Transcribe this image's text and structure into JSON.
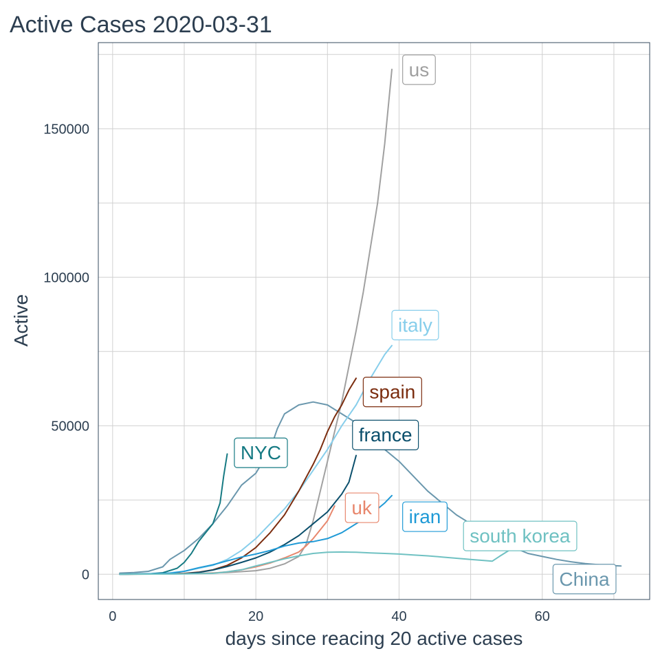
{
  "colors": {
    "text": "#2c3e50",
    "grid": "#d0d0d0",
    "frame": "#34495e"
  },
  "chart_data": {
    "type": "line",
    "title": "Active Cases 2020-03-31",
    "xlabel": "days since reacing 20 active cases",
    "ylabel": "Active",
    "xlim": [
      -2,
      75
    ],
    "ylim": [
      -8500,
      179000
    ],
    "x_ticks": [
      0,
      20,
      40,
      60
    ],
    "x_tick_labels": [
      "0",
      "20",
      "40",
      "60"
    ],
    "y_ticks": [
      0,
      50000,
      100000,
      150000
    ],
    "y_tick_labels": [
      "0",
      "50000",
      "100000",
      "150000"
    ],
    "grid": true,
    "legend": "direct labels at line ends",
    "series": [
      {
        "name": "China",
        "color": "#6a97ad",
        "points": [
          [
            1,
            400
          ],
          [
            3,
            600
          ],
          [
            5,
            1000
          ],
          [
            7,
            2500
          ],
          [
            8,
            5000
          ],
          [
            10,
            8000
          ],
          [
            12,
            12000
          ],
          [
            14,
            17000
          ],
          [
            16,
            23000
          ],
          [
            18,
            30000
          ],
          [
            20,
            34000
          ],
          [
            22,
            42000
          ],
          [
            23,
            49000
          ],
          [
            24,
            54000
          ],
          [
            26,
            57000
          ],
          [
            28,
            58000
          ],
          [
            30,
            57000
          ],
          [
            32,
            54000
          ],
          [
            34,
            51000
          ],
          [
            36,
            46000
          ],
          [
            38,
            42000
          ],
          [
            40,
            38000
          ],
          [
            42,
            33000
          ],
          [
            44,
            28000
          ],
          [
            46,
            24000
          ],
          [
            48,
            20000
          ],
          [
            50,
            17000
          ],
          [
            52,
            14000
          ],
          [
            54,
            11000
          ],
          [
            56,
            9000
          ],
          [
            58,
            7000
          ],
          [
            60,
            6000
          ],
          [
            62,
            5000
          ],
          [
            64,
            4200
          ],
          [
            66,
            3600
          ],
          [
            68,
            3200
          ],
          [
            70,
            2900
          ],
          [
            71,
            2800
          ]
        ],
        "label": "China"
      },
      {
        "name": "us",
        "color": "#a0a0a0",
        "points": [
          [
            1,
            20
          ],
          [
            8,
            80
          ],
          [
            12,
            300
          ],
          [
            16,
            600
          ],
          [
            20,
            1200
          ],
          [
            22,
            2000
          ],
          [
            24,
            3500
          ],
          [
            26,
            6000
          ],
          [
            27,
            10000
          ],
          [
            28,
            18000
          ],
          [
            29,
            28000
          ],
          [
            30,
            38000
          ],
          [
            31,
            48000
          ],
          [
            32,
            58000
          ],
          [
            33,
            70000
          ],
          [
            34,
            82000
          ],
          [
            35,
            95000
          ],
          [
            36,
            110000
          ],
          [
            37,
            125000
          ],
          [
            38,
            145000
          ],
          [
            39,
            170000
          ]
        ],
        "label": "us"
      },
      {
        "name": "italy",
        "color": "#87ceeb",
        "points": [
          [
            1,
            30
          ],
          [
            6,
            200
          ],
          [
            8,
            500
          ],
          [
            10,
            1000
          ],
          [
            12,
            2000
          ],
          [
            14,
            3000
          ],
          [
            16,
            5000
          ],
          [
            18,
            8000
          ],
          [
            20,
            12000
          ],
          [
            22,
            17000
          ],
          [
            24,
            22000
          ],
          [
            26,
            28000
          ],
          [
            28,
            35000
          ],
          [
            30,
            42000
          ],
          [
            32,
            50000
          ],
          [
            34,
            57000
          ],
          [
            36,
            66000
          ],
          [
            37,
            70000
          ],
          [
            38,
            74000
          ],
          [
            39,
            77000
          ]
        ],
        "label": "italy"
      },
      {
        "name": "spain",
        "color": "#7b2d0f",
        "points": [
          [
            1,
            20
          ],
          [
            10,
            300
          ],
          [
            12,
            700
          ],
          [
            14,
            1500
          ],
          [
            16,
            3000
          ],
          [
            18,
            5500
          ],
          [
            20,
            9000
          ],
          [
            22,
            14000
          ],
          [
            24,
            20000
          ],
          [
            26,
            28000
          ],
          [
            28,
            37000
          ],
          [
            29,
            42000
          ],
          [
            30,
            48000
          ],
          [
            31,
            53000
          ],
          [
            32,
            57000
          ],
          [
            33,
            62000
          ],
          [
            34,
            66000
          ]
        ],
        "label": "spain"
      },
      {
        "name": "france",
        "color": "#0b4f6c",
        "points": [
          [
            1,
            20
          ],
          [
            10,
            200
          ],
          [
            12,
            600
          ],
          [
            14,
            1400
          ],
          [
            16,
            2600
          ],
          [
            18,
            4000
          ],
          [
            20,
            5500
          ],
          [
            22,
            7500
          ],
          [
            24,
            10000
          ],
          [
            26,
            13000
          ],
          [
            28,
            17000
          ],
          [
            30,
            21000
          ],
          [
            31,
            24000
          ],
          [
            32,
            27000
          ],
          [
            33,
            31000
          ],
          [
            34,
            40000
          ]
        ],
        "label": "france"
      },
      {
        "name": "NYC",
        "color": "#167a83",
        "points": [
          [
            1,
            20
          ],
          [
            5,
            100
          ],
          [
            7,
            500
          ],
          [
            9,
            2000
          ],
          [
            10,
            4000
          ],
          [
            11,
            7000
          ],
          [
            12,
            11000
          ],
          [
            13,
            14000
          ],
          [
            14,
            17000
          ],
          [
            15,
            24000
          ],
          [
            15.5,
            33000
          ],
          [
            16,
            40500
          ]
        ],
        "label": "NYC"
      },
      {
        "name": "uk",
        "color": "#e8876d",
        "points": [
          [
            1,
            20
          ],
          [
            12,
            200
          ],
          [
            14,
            400
          ],
          [
            16,
            800
          ],
          [
            18,
            1500
          ],
          [
            20,
            2500
          ],
          [
            22,
            3800
          ],
          [
            24,
            5500
          ],
          [
            26,
            7500
          ],
          [
            27,
            9500
          ],
          [
            28,
            12000
          ],
          [
            29,
            15000
          ],
          [
            30,
            18000
          ],
          [
            31,
            23000
          ]
        ],
        "label": "uk"
      },
      {
        "name": "iran",
        "color": "#1f9ad6",
        "points": [
          [
            1,
            20
          ],
          [
            8,
            300
          ],
          [
            10,
            1000
          ],
          [
            12,
            2200
          ],
          [
            14,
            3200
          ],
          [
            16,
            4500
          ],
          [
            18,
            5800
          ],
          [
            20,
            6800
          ],
          [
            22,
            8000
          ],
          [
            24,
            9500
          ],
          [
            26,
            10500
          ],
          [
            28,
            11000
          ],
          [
            30,
            12000
          ],
          [
            32,
            14000
          ],
          [
            34,
            17000
          ],
          [
            36,
            20000
          ],
          [
            38,
            24000
          ],
          [
            39,
            26500
          ]
        ],
        "label": "iran"
      },
      {
        "name": "south korea",
        "color": "#6fc1c2",
        "points": [
          [
            1,
            20
          ],
          [
            10,
            100
          ],
          [
            14,
            300
          ],
          [
            16,
            800
          ],
          [
            18,
            1500
          ],
          [
            20,
            2800
          ],
          [
            22,
            4000
          ],
          [
            24,
            5200
          ],
          [
            26,
            6200
          ],
          [
            28,
            7000
          ],
          [
            30,
            7400
          ],
          [
            32,
            7500
          ],
          [
            34,
            7400
          ],
          [
            36,
            7200
          ],
          [
            38,
            7000
          ],
          [
            40,
            6800
          ],
          [
            42,
            6500
          ],
          [
            44,
            6200
          ],
          [
            46,
            5800
          ],
          [
            48,
            5400
          ],
          [
            50,
            5000
          ],
          [
            52,
            4600
          ],
          [
            53,
            4400
          ],
          [
            54,
            6000
          ],
          [
            55,
            7500
          ],
          [
            56,
            9000
          ]
        ],
        "label": "south korea"
      }
    ]
  }
}
